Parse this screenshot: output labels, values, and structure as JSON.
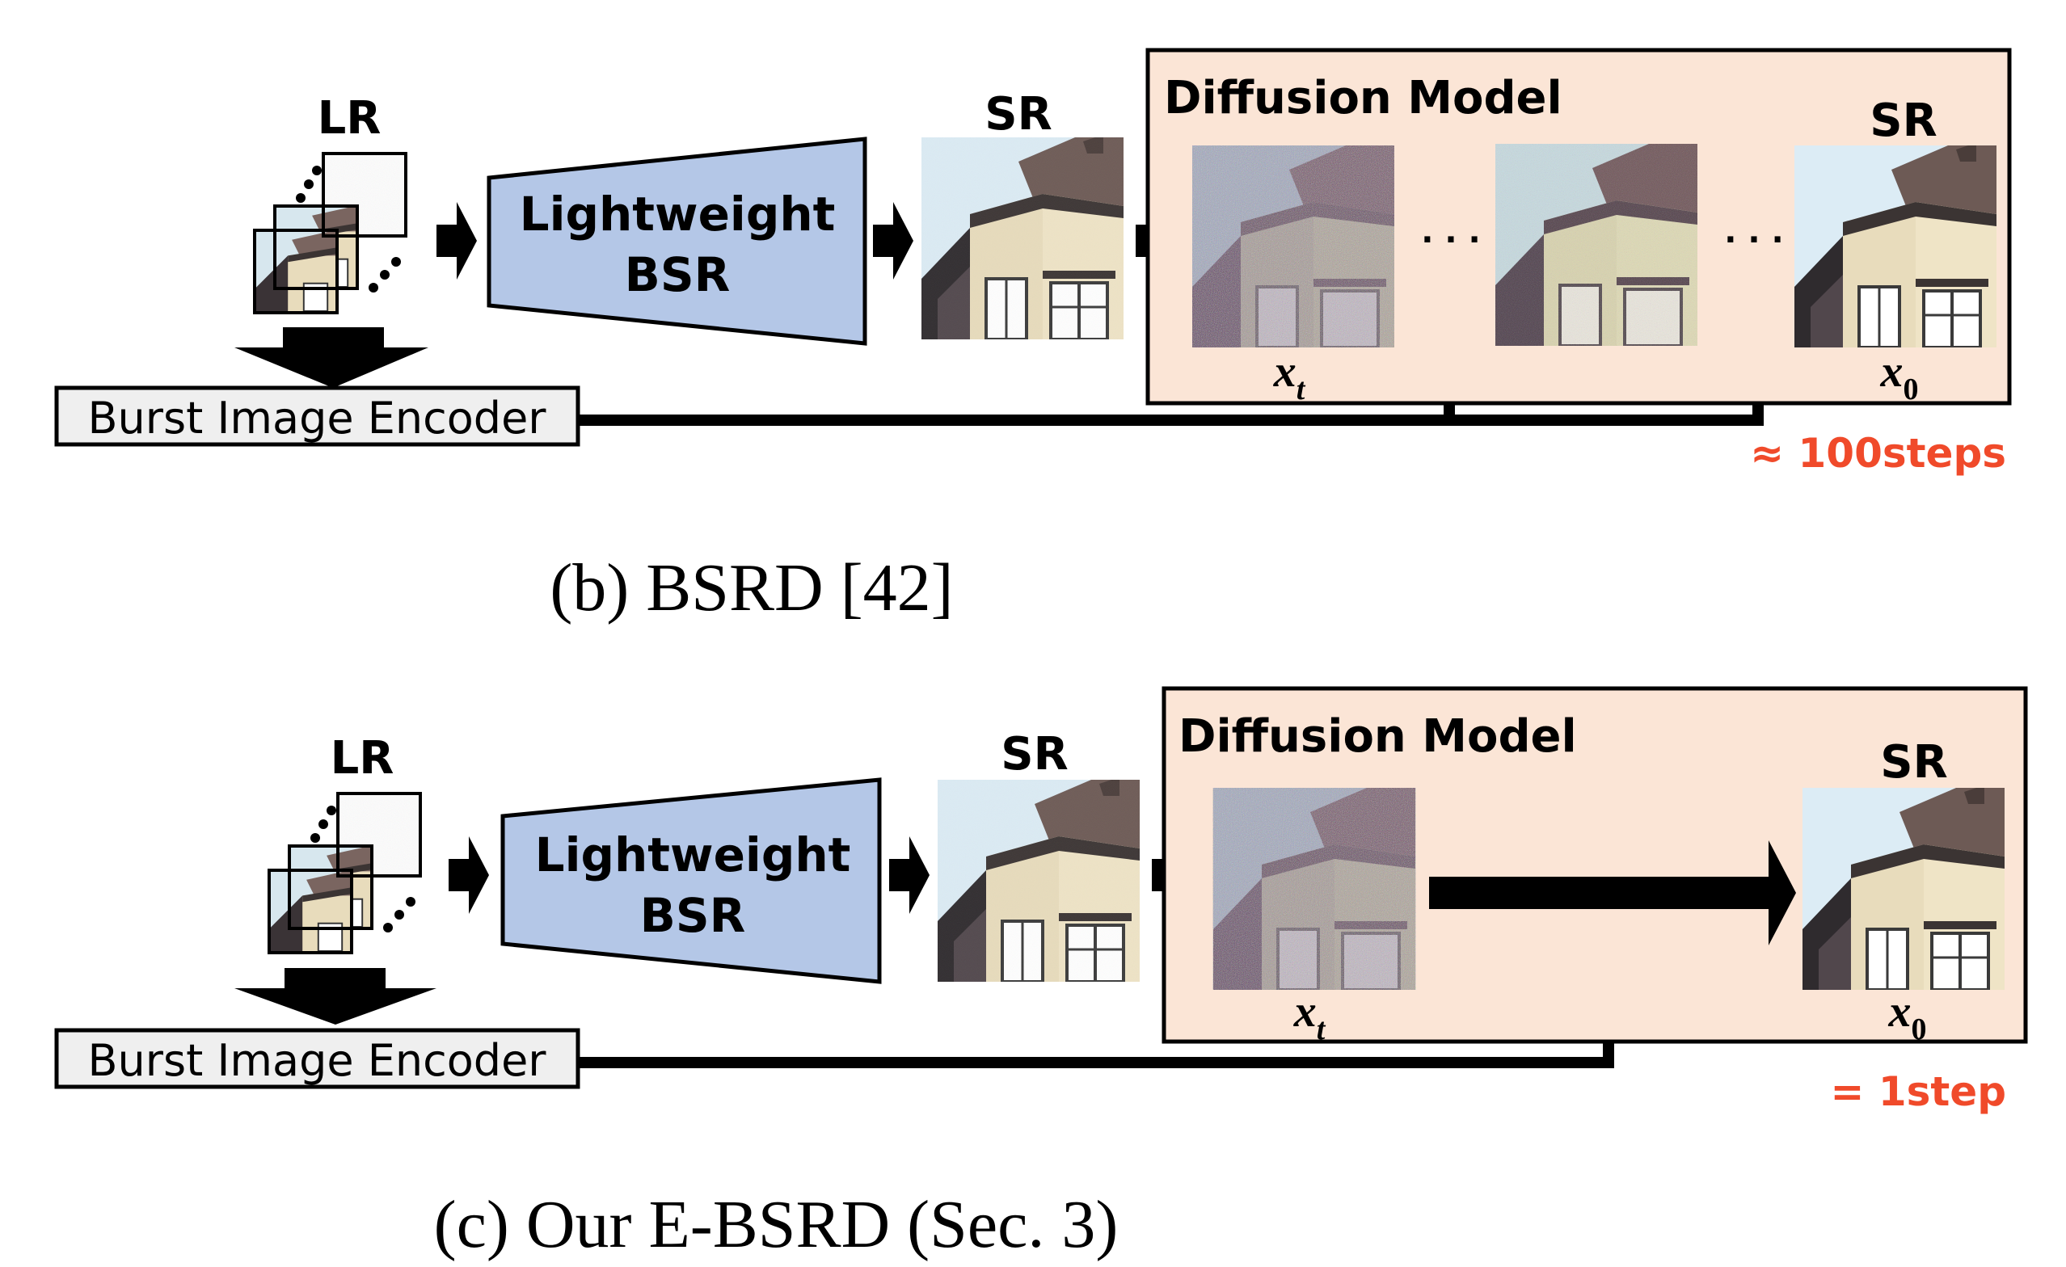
{
  "panel_b": {
    "lr_label": "LR",
    "sr_label": "SR",
    "bsr_line1": "Lightweight",
    "bsr_line2": "BSR",
    "encoder_label": "Burst Image Encoder",
    "diffusion_title": "Diffusion Model",
    "sr_out_label": "SR",
    "xt_base": "x",
    "xt_sub": "t",
    "x0_base": "x",
    "x0_sub": "0",
    "ellipsis": "· · ·",
    "steps_label": "≈ 100steps",
    "caption": "(b) BSRD [42]"
  },
  "panel_c": {
    "lr_label": "LR",
    "sr_label": "SR",
    "bsr_line1": "Lightweight",
    "bsr_line2": "BSR",
    "encoder_label": "Burst Image Encoder",
    "diffusion_title": "Diffusion Model",
    "sr_out_label": "SR",
    "xt_base": "x",
    "xt_sub": "t",
    "x0_base": "x",
    "x0_sub": "0",
    "steps_label": "= 1step",
    "caption": "(c) Our E-BSRD (Sec. 3)"
  },
  "colors": {
    "bsr_fill": "#b4c7e7",
    "diffusion_fill": "#fbe5d6",
    "encoder_fill": "#efefef",
    "accent_red": "#f04a2a",
    "ink": "#000000"
  }
}
